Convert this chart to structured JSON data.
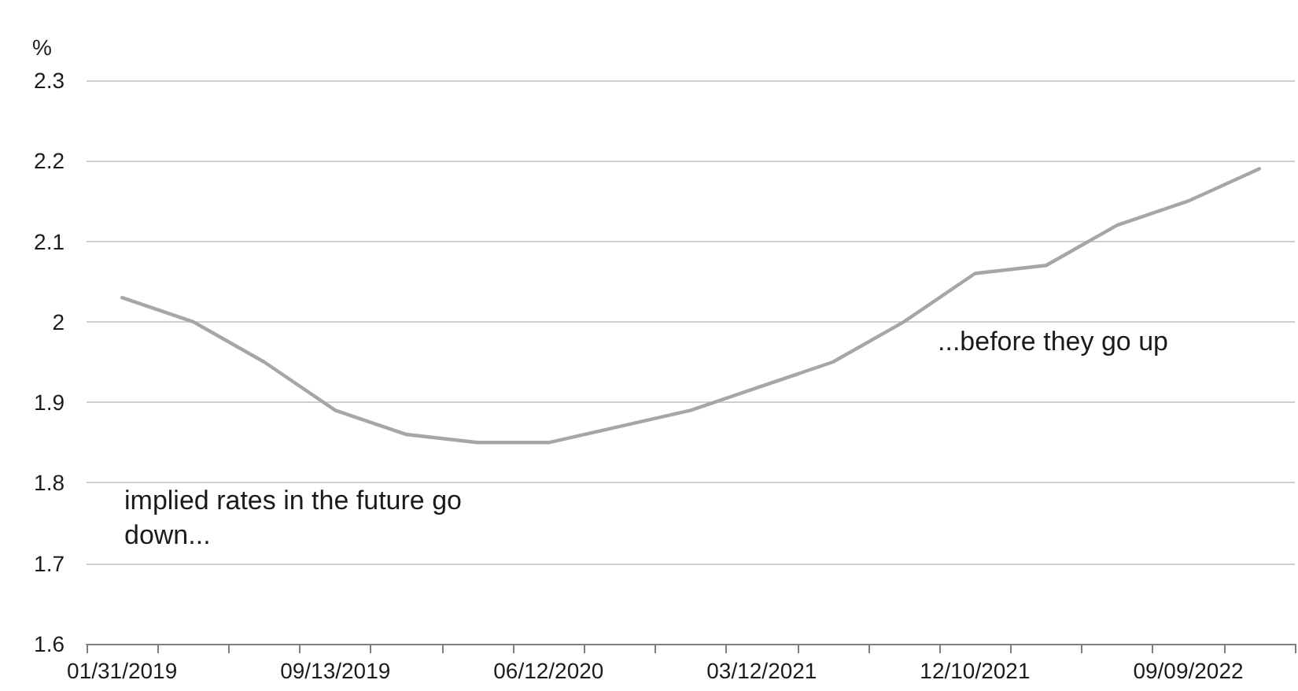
{
  "chart_data": {
    "type": "line",
    "ylabel": "%",
    "categories": [
      "01/31/2019",
      null,
      null,
      "09/13/2019",
      null,
      null,
      "06/12/2020",
      null,
      null,
      "03/12/2021",
      null,
      null,
      "12/10/2021",
      null,
      null,
      "09/09/2022",
      null
    ],
    "series": [
      {
        "color": "#a6a6a6",
        "values": [
          2.03,
          2.0,
          1.95,
          1.89,
          1.86,
          1.85,
          1.85,
          1.87,
          1.89,
          1.92,
          1.95,
          2.0,
          2.06,
          2.07,
          2.12,
          2.15,
          2.19
        ]
      }
    ],
    "ylim": [
      1.6,
      2.3
    ],
    "yticks": [
      1.6,
      1.7,
      1.8,
      1.9,
      2,
      2.1,
      2.2,
      2.3
    ],
    "grid": "y",
    "marker": "none",
    "line_style": "solid",
    "annotations": [
      "implied rates in the future go down...",
      "...before they go up"
    ]
  }
}
